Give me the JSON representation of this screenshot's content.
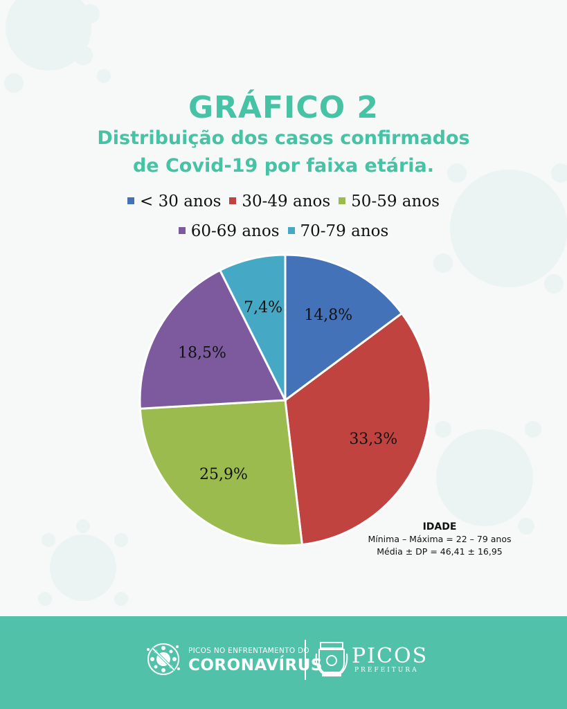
{
  "header": {
    "title": "GRÁFICO 2",
    "subtitle_line1": "Distribuição dos casos confirmados",
    "subtitle_line2": "de Covid-19 por faixa etária."
  },
  "chart_data": {
    "type": "pie",
    "title": "GRÁFICO 2",
    "subtitle": "Distribuição dos casos confirmados de Covid-19 por faixa etária.",
    "legend_position": "top",
    "categories": [
      "< 30 anos",
      "30-49 anos",
      "50-59 anos",
      "60-69 anos",
      "70-79 anos"
    ],
    "values": [
      14.8,
      33.3,
      25.9,
      18.5,
      7.4
    ],
    "labels": [
      "14,8%",
      "33,3%",
      "25,9%",
      "18,5%",
      "7,4%"
    ],
    "colors": [
      "#4472b8",
      "#c0433f",
      "#9bbb4e",
      "#7d5a9e",
      "#45a9c6"
    ]
  },
  "stats": {
    "heading": "IDADE",
    "line1": "Mínima – Máxima = 22 – 79 anos",
    "line2": "Média ± DP = 46,41 ± 16,95"
  },
  "footer": {
    "campaign_small": "PICOS NO ENFRENTAMENTO DO",
    "campaign_big": "CORONAVÍRUS",
    "city_name": "PICOS",
    "city_sub": "PREFEITURA",
    "background_color": "#52c1aa"
  },
  "icons": [
    "virus-decoration-icon",
    "no-virus-icon",
    "coat-of-arms-icon"
  ]
}
